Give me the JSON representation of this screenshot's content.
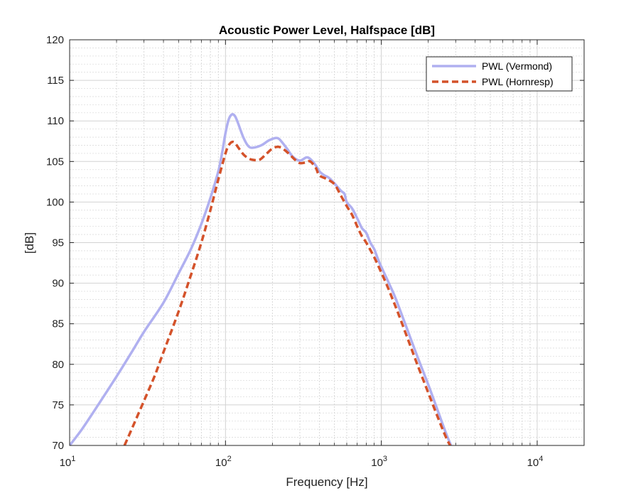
{
  "chart_data": {
    "type": "line",
    "title": "Acoustic Power Level, Halfspace [dB]",
    "xlabel": "Frequency [Hz]",
    "ylabel": "[dB]",
    "xscale": "log",
    "xlim": [
      10,
      20000
    ],
    "ylim": [
      70,
      120
    ],
    "grid": true,
    "minor_grid": true,
    "legend_position": "top-right",
    "x_ticks": [
      {
        "value": 10,
        "base": "10",
        "exp": "1"
      },
      {
        "value": 100,
        "base": "10",
        "exp": "2"
      },
      {
        "value": 1000,
        "base": "10",
        "exp": "3"
      },
      {
        "value": 10000,
        "base": "10",
        "exp": "4"
      }
    ],
    "y_ticks": [
      {
        "value": 70,
        "label": "70"
      },
      {
        "value": 75,
        "label": "75"
      },
      {
        "value": 80,
        "label": "80"
      },
      {
        "value": 85,
        "label": "85"
      },
      {
        "value": 90,
        "label": "90"
      },
      {
        "value": 95,
        "label": "95"
      },
      {
        "value": 100,
        "label": "100"
      },
      {
        "value": 105,
        "label": "105"
      },
      {
        "value": 110,
        "label": "110"
      },
      {
        "value": 115,
        "label": "115"
      },
      {
        "value": 120,
        "label": "120"
      }
    ],
    "series": [
      {
        "name": "PWL (Vermond)",
        "color": "#b0b0f0",
        "style": "solid",
        "x": [
          10,
          12,
          15,
          20,
          25,
          30,
          40,
          50,
          60,
          70,
          80,
          90,
          95,
          100,
          105,
          110,
          115,
          120,
          130,
          140,
          150,
          170,
          190,
          210,
          220,
          230,
          250,
          270,
          300,
          330,
          350,
          380,
          400,
          430,
          460,
          500,
          550,
          580,
          600,
          650,
          700,
          750,
          800,
          850,
          900,
          950,
          1000,
          1100,
          1200,
          1300,
          1500,
          1700,
          2000,
          2300,
          2600,
          2800
        ],
        "y": [
          70.0,
          72.0,
          74.8,
          78.5,
          81.5,
          84.0,
          87.6,
          91.2,
          94.2,
          97.3,
          100.5,
          103.8,
          106.0,
          108.5,
          110.2,
          110.8,
          110.6,
          109.8,
          108.0,
          106.9,
          106.7,
          107.0,
          107.6,
          107.9,
          107.8,
          107.4,
          106.5,
          105.6,
          105.1,
          105.5,
          105.3,
          104.5,
          103.8,
          103.3,
          103.0,
          102.3,
          101.4,
          101.0,
          100.0,
          99.2,
          98.0,
          96.8,
          96.2,
          95.0,
          94.2,
          93.0,
          92.0,
          90.3,
          88.7,
          87.0,
          83.8,
          81.0,
          77.5,
          74.3,
          71.5,
          70.0
        ]
      },
      {
        "name": "PWL (Hornresp)",
        "color": "#d4522a",
        "style": "dashed",
        "x": [
          22.5,
          25,
          30,
          35,
          40,
          50,
          60,
          70,
          80,
          90,
          100,
          105,
          110,
          115,
          120,
          130,
          140,
          150,
          165,
          180,
          200,
          220,
          240,
          260,
          280,
          300,
          330,
          350,
          380,
          400,
          450,
          500,
          550,
          600,
          650,
          700,
          750,
          800,
          900,
          1000,
          1100,
          1200,
          1300,
          1500,
          1700,
          2000,
          2300,
          2600,
          2800
        ],
        "y": [
          70.0,
          72.0,
          75.5,
          78.5,
          81.5,
          86.5,
          91.0,
          95.0,
          99.0,
          102.8,
          106.0,
          107.0,
          107.4,
          107.3,
          106.8,
          105.9,
          105.4,
          105.2,
          105.2,
          105.8,
          106.6,
          106.8,
          106.4,
          105.8,
          105.2,
          104.8,
          104.9,
          105.0,
          104.2,
          103.3,
          102.8,
          102.2,
          100.8,
          99.5,
          98.4,
          97.0,
          95.8,
          95.0,
          93.2,
          91.3,
          89.5,
          87.7,
          86.0,
          82.8,
          80.0,
          76.5,
          73.5,
          71.0,
          69.8
        ]
      }
    ]
  }
}
